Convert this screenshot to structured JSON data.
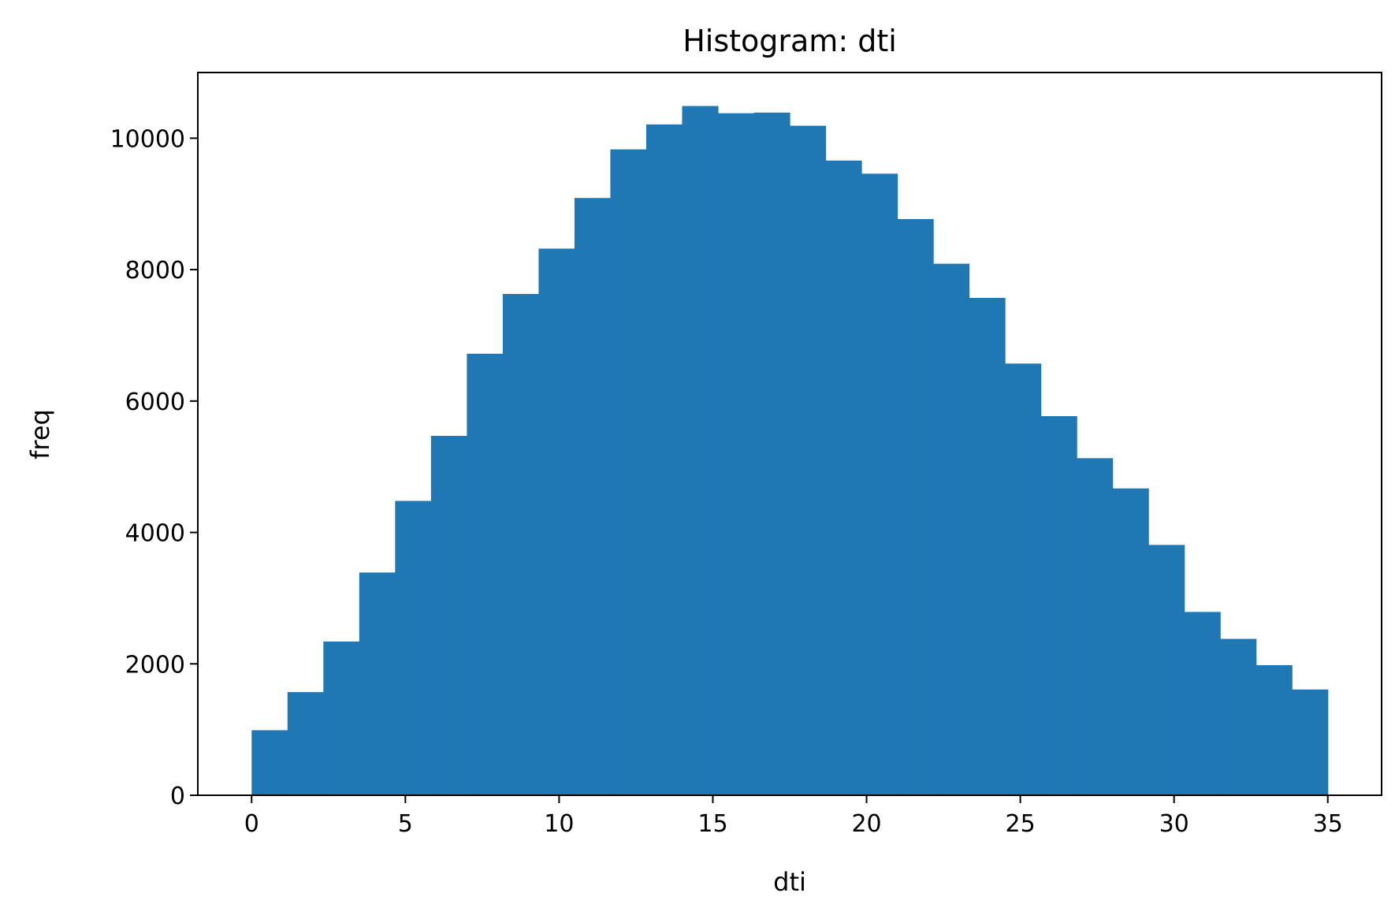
{
  "chart_data": {
    "type": "bar",
    "title": "Histogram: dti",
    "xlabel": "dti",
    "ylabel": "freq",
    "xlim": [
      -1.75,
      36.75
    ],
    "ylim": [
      0,
      11000
    ],
    "xticks": [
      0,
      5,
      10,
      15,
      20,
      25,
      30,
      35
    ],
    "yticks": [
      0,
      2000,
      4000,
      6000,
      8000,
      10000
    ],
    "grid": false,
    "bar_color": "#1f77b4",
    "bin_start": 0,
    "bin_end": 35,
    "bins": 30,
    "values": [
      990,
      1570,
      2340,
      3390,
      4480,
      5470,
      6720,
      7630,
      8320,
      9090,
      9830,
      10210,
      10490,
      10380,
      10390,
      10190,
      9660,
      9460,
      8770,
      8090,
      7570,
      6570,
      5770,
      5130,
      4670,
      3810,
      2790,
      2380,
      1980,
      1610
    ]
  }
}
